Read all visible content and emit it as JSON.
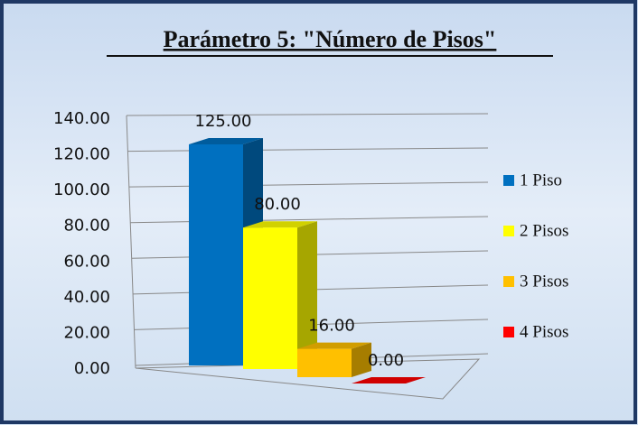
{
  "chart_data": {
    "type": "bar3d",
    "title": "Parámetro 5: \"Número de Pisos\"",
    "categories": [
      null
    ],
    "series": [
      {
        "name": "1 Piso",
        "color": "#0070c0",
        "values": [
          125
        ],
        "value_labels": [
          "125.00"
        ]
      },
      {
        "name": "2 Pisos",
        "color": "#ffff00",
        "values": [
          80
        ],
        "value_labels": [
          "80.00"
        ]
      },
      {
        "name": "3 Pisos",
        "color": "#ffc000",
        "values": [
          16
        ],
        "value_labels": [
          "16.00"
        ]
      },
      {
        "name": "4 Pisos",
        "color": "#ff0000",
        "values": [
          0
        ],
        "value_labels": [
          "0.00"
        ]
      }
    ],
    "ylim": [
      0,
      140
    ],
    "yticks": [
      {
        "value": 0,
        "label": "0.00"
      },
      {
        "value": 20,
        "label": "20.00"
      },
      {
        "value": 40,
        "label": "40.00"
      },
      {
        "value": 60,
        "label": "60.00"
      },
      {
        "value": 80,
        "label": "80.00"
      },
      {
        "value": 100,
        "label": "100.00"
      },
      {
        "value": 120,
        "label": "120.00"
      },
      {
        "value": 140,
        "label": "140.00"
      }
    ],
    "grid": true,
    "legend": "right"
  }
}
